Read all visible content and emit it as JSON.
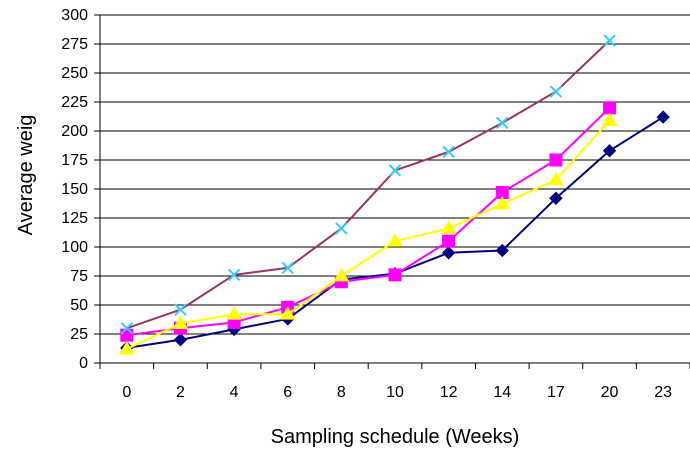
{
  "chart_data": {
    "type": "line",
    "title": "",
    "xlabel": "Sampling schedule (Weeks)",
    "ylabel": "Average weig",
    "categories": [
      "0",
      "2",
      "4",
      "6",
      "8",
      "10",
      "12",
      "14",
      "17",
      "20",
      "23"
    ],
    "ylim": [
      0,
      300
    ],
    "yticks": [
      0,
      25,
      50,
      75,
      100,
      125,
      150,
      175,
      200,
      225,
      250,
      275,
      300
    ],
    "grid": "horizontal",
    "legend": "none",
    "series": [
      {
        "line_color": "#000080",
        "marker": "diamond",
        "marker_color": "#000080",
        "values": [
          13,
          20,
          29,
          38,
          72,
          77,
          95,
          97,
          142,
          183,
          212
        ]
      },
      {
        "line_color": "#ff00ff",
        "marker": "square",
        "marker_color": "#ff00ff",
        "values": [
          24,
          30,
          35,
          48,
          70,
          76,
          105,
          147,
          175,
          220,
          null
        ]
      },
      {
        "line_color": "#ffff00",
        "marker": "triangle",
        "marker_color": "#ffff00",
        "values": [
          12,
          34,
          42,
          42,
          75,
          105,
          116,
          137,
          158,
          209,
          null
        ]
      },
      {
        "line_color": "#993366",
        "marker": "x",
        "marker_color": "#33ccff",
        "values": [
          30,
          46,
          76,
          82,
          116,
          166,
          182,
          207,
          234,
          278,
          null
        ]
      }
    ]
  }
}
